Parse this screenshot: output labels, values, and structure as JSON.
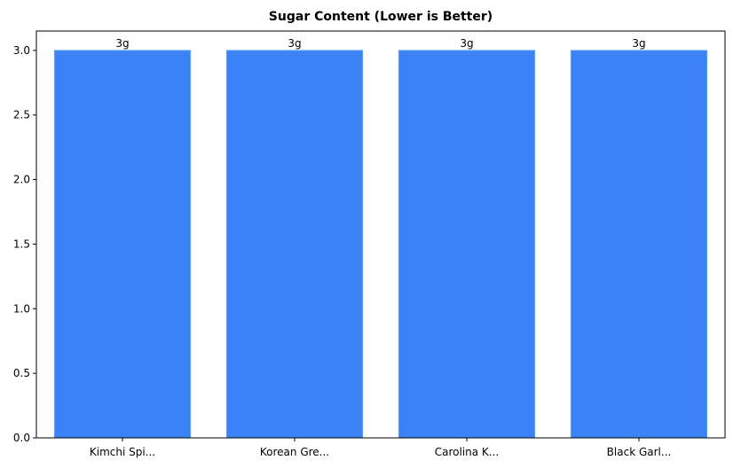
{
  "chart_data": {
    "type": "bar",
    "title": "Sugar Content (Lower is Better)",
    "categories": [
      "Kimchi Spi...",
      "Korean Gre...",
      "Carolina K...",
      "Black Garl..."
    ],
    "values": [
      3,
      3,
      3,
      3
    ],
    "data_labels": [
      "3g",
      "3g",
      "3g",
      "3g"
    ],
    "xlabel": "",
    "ylabel": "",
    "ylim": [
      0,
      3.15
    ],
    "yticks": [
      0.0,
      0.5,
      1.0,
      1.5,
      2.0,
      2.5,
      3.0
    ],
    "ytick_labels": [
      "0.0",
      "0.5",
      "1.0",
      "1.5",
      "2.0",
      "2.5",
      "3.0"
    ],
    "grid": false,
    "colors": {
      "bar_fill": "#3b82f6",
      "bar_edge": "#60a5fa",
      "axis": "#000000"
    }
  }
}
